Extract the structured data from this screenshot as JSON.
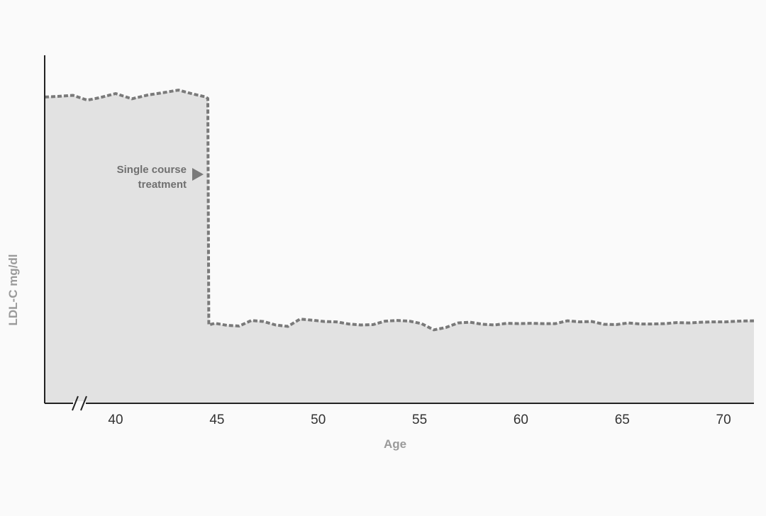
{
  "chart_data": {
    "type": "line",
    "title": "",
    "xlabel": "Age",
    "ylabel": "LDL-C mg/dl",
    "xlim": [
      36.5,
      71.5
    ],
    "ylim": [
      0,
      100
    ],
    "x_ticks": [
      40,
      45,
      50,
      55,
      60,
      65,
      70
    ],
    "y_ticks": [],
    "axis_break": "x-axis near origin",
    "grid": false,
    "legend": "none",
    "fill_under_line": true,
    "colors": {
      "line": "#7a7a7a",
      "fill": "#e2e2e2",
      "axis": "#222222",
      "background": "#fafafa"
    },
    "series": [
      {
        "x": [
          36.5,
          37.2,
          37.9,
          38.6,
          39.2,
          40.0,
          40.8,
          41.6,
          42.4,
          43.1,
          43.8,
          44.1,
          44.4,
          44.55,
          44.6,
          44.9,
          45.5,
          46.1,
          46.7,
          47.3,
          47.9,
          48.5,
          49.1,
          49.7,
          50.3,
          50.9,
          51.5,
          52.1,
          52.7,
          53.3,
          53.9,
          54.5,
          55.1,
          55.7,
          56.3,
          56.9,
          57.5,
          58.1,
          58.7,
          59.3,
          59.9,
          60.5,
          61.1,
          61.7,
          62.3,
          62.9,
          63.5,
          64.1,
          64.7,
          65.3,
          65.9,
          66.5,
          67.1,
          67.7,
          68.3,
          68.9,
          69.5,
          70.1,
          70.7,
          71.5
        ],
        "y": [
          88.0,
          88.2,
          88.5,
          87.1,
          87.8,
          89.0,
          87.5,
          88.6,
          89.3,
          90.0,
          88.9,
          88.5,
          88.1,
          87.6,
          22.5,
          23.0,
          22.4,
          22.2,
          23.8,
          23.5,
          22.5,
          22.1,
          24.2,
          23.9,
          23.5,
          23.4,
          22.8,
          22.5,
          22.6,
          23.6,
          23.8,
          23.6,
          22.9,
          21.1,
          21.8,
          23.1,
          23.3,
          22.7,
          22.5,
          23.0,
          22.9,
          23.0,
          22.9,
          22.9,
          23.7,
          23.4,
          23.5,
          22.7,
          22.6,
          23.1,
          22.8,
          22.8,
          22.9,
          23.2,
          23.1,
          23.3,
          23.4,
          23.4,
          23.6,
          23.7
        ]
      }
    ],
    "annotations": [
      {
        "text_lines": [
          "Single course",
          "treatment"
        ],
        "arrow": "right",
        "target_x": 44.55
      }
    ]
  }
}
